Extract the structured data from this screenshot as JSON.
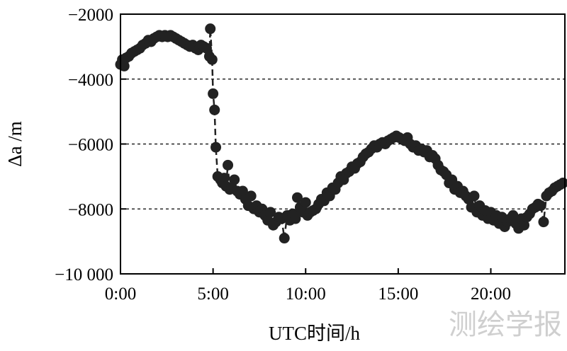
{
  "chart_data": {
    "type": "scatter",
    "title": "",
    "xlabel": "UTC时间/h",
    "ylabel": "Δa /m",
    "xlim": [
      0,
      24
    ],
    "ylim": [
      -10000,
      -2000
    ],
    "x_ticks": [
      0,
      5,
      10,
      15,
      20
    ],
    "x_tick_labels": [
      "0:00",
      "5:00",
      "10:00",
      "15:00",
      "20:00"
    ],
    "y_ticks": [
      -10000,
      -8000,
      -6000,
      -4000,
      -2000
    ],
    "y_tick_labels": [
      "−10 000",
      "−8000",
      "−6000",
      "−4000",
      "−2000"
    ],
    "grid": "dashed horizontal at -8000, -6000, -4000",
    "marker_color": "#222222",
    "line_style": "dashed",
    "points": [
      [
        0.0,
        -3550
      ],
      [
        0.1,
        -3400
      ],
      [
        0.2,
        -3600
      ],
      [
        0.3,
        -3350
      ],
      [
        0.45,
        -3300
      ],
      [
        0.6,
        -3200
      ],
      [
        0.75,
        -3150
      ],
      [
        0.9,
        -3100
      ],
      [
        1.05,
        -3050
      ],
      [
        1.2,
        -2950
      ],
      [
        1.35,
        -2900
      ],
      [
        1.5,
        -2800
      ],
      [
        1.65,
        -2850
      ],
      [
        1.8,
        -2750
      ],
      [
        1.95,
        -2700
      ],
      [
        2.1,
        -2650
      ],
      [
        2.25,
        -2700
      ],
      [
        2.4,
        -2650
      ],
      [
        2.55,
        -2700
      ],
      [
        2.7,
        -2650
      ],
      [
        2.85,
        -2700
      ],
      [
        3.0,
        -2750
      ],
      [
        3.15,
        -2800
      ],
      [
        3.3,
        -2850
      ],
      [
        3.45,
        -2900
      ],
      [
        3.6,
        -2950
      ],
      [
        3.75,
        -3000
      ],
      [
        3.9,
        -2950
      ],
      [
        4.05,
        -3050
      ],
      [
        4.2,
        -3100
      ],
      [
        4.35,
        -2950
      ],
      [
        4.5,
        -3000
      ],
      [
        4.65,
        -3050
      ],
      [
        4.8,
        -3300
      ],
      [
        4.85,
        -2450
      ],
      [
        4.95,
        -3400
      ],
      [
        5.0,
        -4450
      ],
      [
        5.08,
        -4950
      ],
      [
        5.15,
        -6100
      ],
      [
        5.25,
        -7000
      ],
      [
        5.4,
        -7100
      ],
      [
        5.5,
        -7200
      ],
      [
        5.6,
        -7050
      ],
      [
        5.7,
        -7300
      ],
      [
        5.8,
        -6650
      ],
      [
        5.9,
        -7400
      ],
      [
        6.0,
        -7350
      ],
      [
        6.15,
        -7100
      ],
      [
        6.3,
        -7450
      ],
      [
        6.45,
        -7550
      ],
      [
        6.6,
        -7450
      ],
      [
        6.75,
        -7700
      ],
      [
        6.9,
        -7900
      ],
      [
        7.05,
        -7600
      ],
      [
        7.2,
        -8000
      ],
      [
        7.35,
        -7900
      ],
      [
        7.5,
        -8100
      ],
      [
        7.65,
        -8000
      ],
      [
        7.8,
        -8200
      ],
      [
        7.95,
        -8350
      ],
      [
        8.1,
        -8100
      ],
      [
        8.25,
        -8500
      ],
      [
        8.4,
        -8400
      ],
      [
        8.55,
        -8250
      ],
      [
        8.7,
        -8300
      ],
      [
        8.85,
        -8900
      ],
      [
        9.0,
        -8200
      ],
      [
        9.15,
        -8350
      ],
      [
        9.3,
        -8150
      ],
      [
        9.45,
        -8300
      ],
      [
        9.55,
        -7650
      ],
      [
        9.7,
        -7950
      ],
      [
        9.85,
        -8100
      ],
      [
        10.0,
        -7800
      ],
      [
        10.1,
        -8200
      ],
      [
        10.25,
        -8100
      ],
      [
        10.4,
        -8050
      ],
      [
        10.55,
        -8000
      ],
      [
        10.7,
        -7850
      ],
      [
        10.85,
        -7700
      ],
      [
        11.0,
        -7750
      ],
      [
        11.15,
        -7500
      ],
      [
        11.3,
        -7600
      ],
      [
        11.45,
        -7350
      ],
      [
        11.6,
        -7400
      ],
      [
        11.75,
        -7200
      ],
      [
        11.9,
        -7000
      ],
      [
        12.05,
        -7100
      ],
      [
        12.2,
        -6900
      ],
      [
        12.35,
        -6850
      ],
      [
        12.5,
        -6700
      ],
      [
        12.65,
        -6750
      ],
      [
        12.8,
        -6600
      ],
      [
        12.95,
        -6550
      ],
      [
        13.1,
        -6400
      ],
      [
        13.25,
        -6300
      ],
      [
        13.4,
        -6250
      ],
      [
        13.55,
        -6150
      ],
      [
        13.7,
        -6050
      ],
      [
        13.85,
        -6100
      ],
      [
        14.0,
        -6000
      ],
      [
        14.15,
        -5950
      ],
      [
        14.3,
        -6000
      ],
      [
        14.45,
        -5900
      ],
      [
        14.6,
        -5850
      ],
      [
        14.75,
        -5800
      ],
      [
        14.9,
        -5750
      ],
      [
        15.05,
        -5800
      ],
      [
        15.2,
        -5850
      ],
      [
        15.35,
        -5900
      ],
      [
        15.5,
        -5800
      ],
      [
        15.65,
        -6000
      ],
      [
        15.8,
        -6100
      ],
      [
        15.95,
        -6050
      ],
      [
        16.1,
        -6200
      ],
      [
        16.25,
        -6150
      ],
      [
        16.4,
        -6250
      ],
      [
        16.55,
        -6200
      ],
      [
        16.7,
        -6400
      ],
      [
        16.85,
        -6350
      ],
      [
        17.0,
        -6450
      ],
      [
        17.15,
        -6650
      ],
      [
        17.3,
        -6800
      ],
      [
        17.45,
        -6850
      ],
      [
        17.6,
        -6950
      ],
      [
        17.75,
        -7200
      ],
      [
        17.9,
        -7100
      ],
      [
        18.05,
        -7400
      ],
      [
        18.2,
        -7300
      ],
      [
        18.35,
        -7500
      ],
      [
        18.5,
        -7450
      ],
      [
        18.65,
        -7600
      ],
      [
        18.8,
        -7700
      ],
      [
        18.95,
        -7950
      ],
      [
        19.1,
        -7600
      ],
      [
        19.25,
        -8100
      ],
      [
        19.4,
        -7900
      ],
      [
        19.55,
        -8200
      ],
      [
        19.7,
        -8050
      ],
      [
        19.85,
        -8300
      ],
      [
        20.0,
        -8100
      ],
      [
        20.15,
        -8350
      ],
      [
        20.3,
        -8200
      ],
      [
        20.45,
        -8450
      ],
      [
        20.6,
        -8250
      ],
      [
        20.75,
        -8550
      ],
      [
        20.9,
        -8400
      ],
      [
        21.05,
        -8300
      ],
      [
        21.2,
        -8200
      ],
      [
        21.35,
        -8450
      ],
      [
        21.5,
        -8600
      ],
      [
        21.65,
        -8300
      ],
      [
        21.8,
        -8500
      ],
      [
        21.95,
        -8250
      ],
      [
        22.1,
        -8150
      ],
      [
        22.25,
        -8000
      ],
      [
        22.4,
        -7950
      ],
      [
        22.55,
        -7850
      ],
      [
        22.7,
        -7900
      ],
      [
        22.85,
        -8400
      ],
      [
        23.0,
        -7600
      ],
      [
        23.15,
        -7500
      ],
      [
        23.3,
        -7450
      ],
      [
        23.45,
        -7350
      ],
      [
        23.6,
        -7300
      ],
      [
        23.75,
        -7250
      ],
      [
        23.9,
        -7200
      ]
    ]
  },
  "watermark": "测绘学报"
}
